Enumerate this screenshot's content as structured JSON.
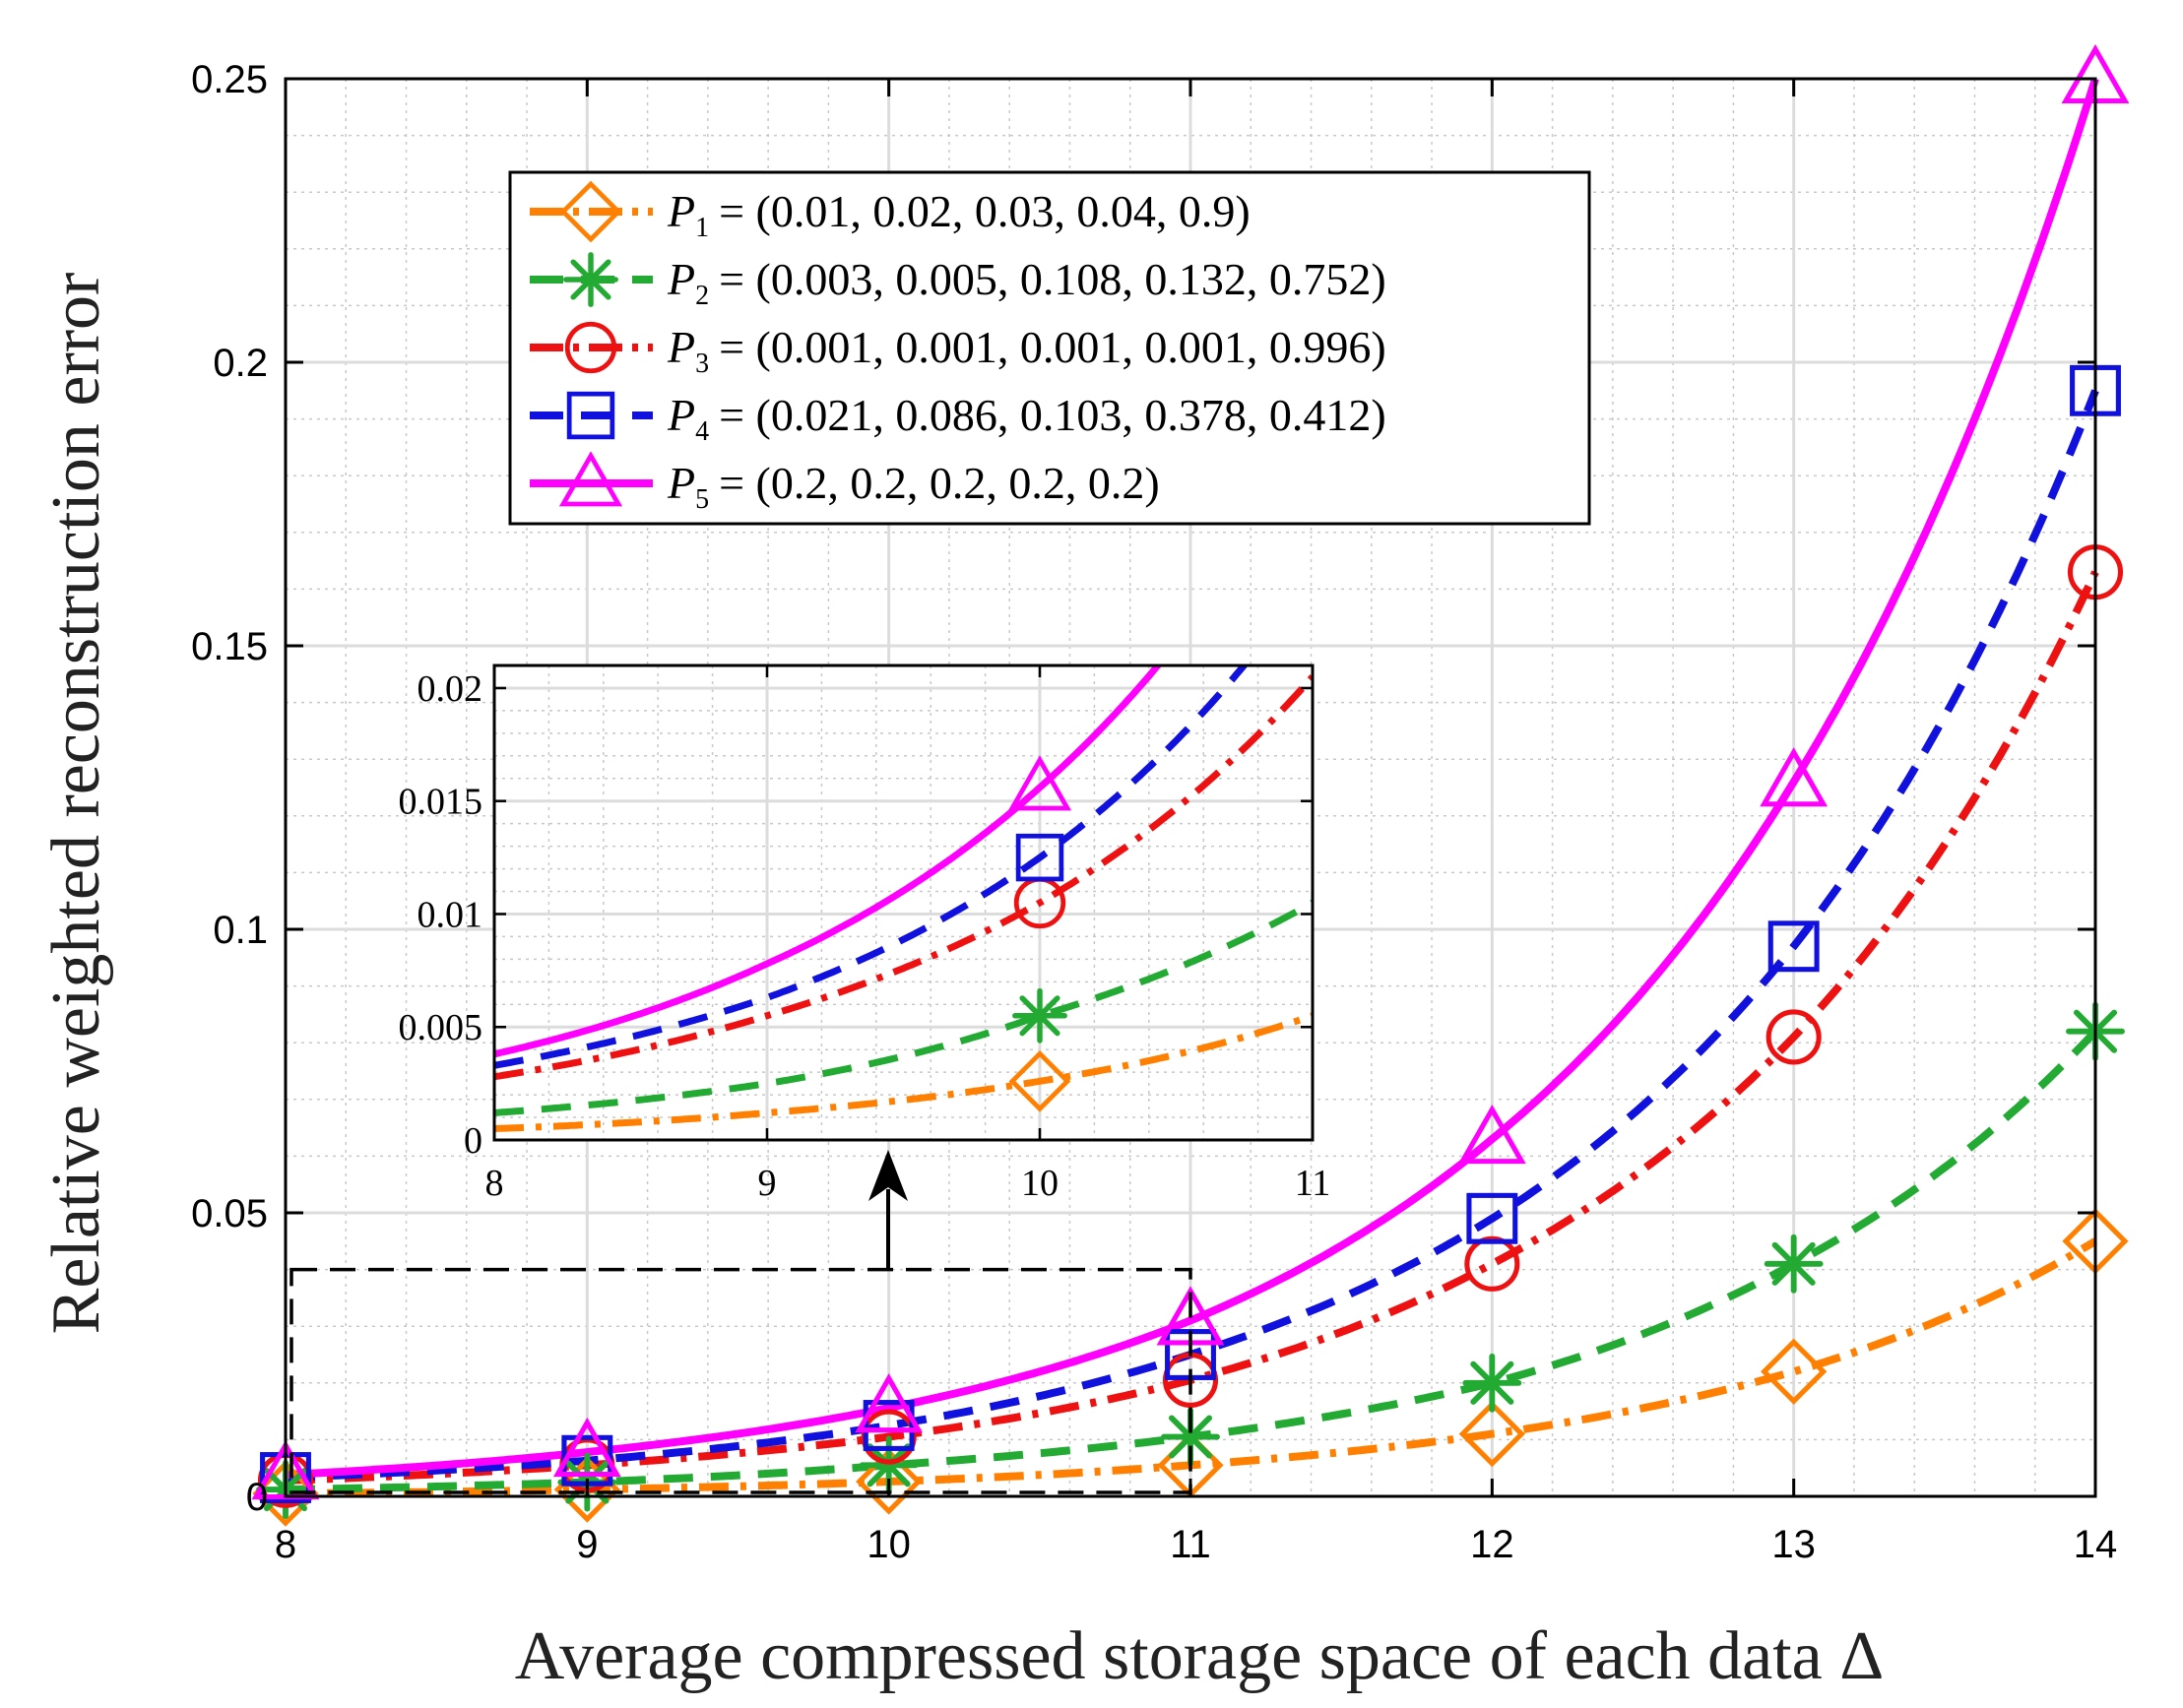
{
  "chart_data": [
    {
      "type": "line",
      "role": "main",
      "xlabel": "Average compressed storage space of each data Δ",
      "ylabel": "Relative weighted reconstruction error",
      "xlim": [
        8,
        14
      ],
      "ylim": [
        0,
        0.25
      ],
      "xticks": [
        "8",
        "9",
        "10",
        "11",
        "12",
        "13",
        "14"
      ],
      "yticks": [
        "0",
        "0.05",
        "0.1",
        "0.15",
        "0.2",
        "0.25"
      ],
      "grid": "major and minor",
      "legend_position": "top-left",
      "x": [
        8,
        9,
        10,
        11,
        12,
        13,
        14
      ],
      "series": [
        {
          "name": "P1",
          "legend_label": "= (0.01, 0.02, 0.03, 0.04, 0.9)",
          "color": "#ff8000",
          "line_style": "dashdot",
          "marker": "diamond",
          "values": [
            0.0005,
            0.0012,
            0.0026,
            0.0055,
            0.011,
            0.022,
            0.045
          ]
        },
        {
          "name": "P2",
          "legend_label": "= (0.003, 0.005, 0.108, 0.132, 0.752)",
          "color": "#22aa33",
          "line_style": "dashed",
          "marker": "asterisk",
          "values": [
            0.0012,
            0.0025,
            0.0055,
            0.0105,
            0.02,
            0.041,
            0.082
          ]
        },
        {
          "name": "P3",
          "legend_label": "= (0.001, 0.001, 0.001, 0.001, 0.996)",
          "color": "#ee1111",
          "line_style": "dashdot",
          "marker": "circle",
          "values": [
            0.0028,
            0.0055,
            0.0105,
            0.0205,
            0.041,
            0.081,
            0.163
          ]
        },
        {
          "name": "P4",
          "legend_label": "= (0.021, 0.086, 0.103, 0.378, 0.412)",
          "color": "#1111dd",
          "line_style": "dashed",
          "marker": "square",
          "values": [
            0.0033,
            0.0063,
            0.0125,
            0.025,
            0.049,
            0.097,
            0.195
          ]
        },
        {
          "name": "P5",
          "legend_label": "= (0.2, 0.2, 0.2, 0.2, 0.2)",
          "color": "#ff00ff",
          "line_style": "solid",
          "marker": "triangle",
          "values": [
            0.0038,
            0.0078,
            0.0156,
            0.031,
            0.063,
            0.126,
            0.25
          ]
        }
      ]
    },
    {
      "type": "line",
      "role": "inset",
      "xlim": [
        8,
        11
      ],
      "ylim": [
        0,
        0.021
      ],
      "xticks": [
        "8",
        "9",
        "10",
        "11"
      ],
      "yticks": [
        "0",
        "0.005",
        "0.01",
        "0.015",
        "0.02"
      ],
      "marker_x": 10,
      "note": "zoom of the dashed region near Δ = 8 to 11"
    }
  ]
}
